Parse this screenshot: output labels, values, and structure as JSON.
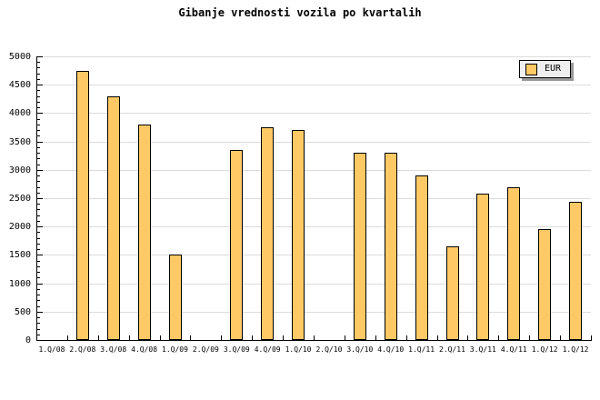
{
  "title": "Gibanje vrednosti vozila po kvartalih",
  "legend": {
    "label": "EUR",
    "swatch_color": "#ffc966",
    "position": "top-right"
  },
  "colors": {
    "background": "#ffffff",
    "bar_fill": "#ffc966",
    "bar_border": "#000000",
    "grid": "#dcdcdc",
    "axis": "#000000",
    "legend_bg": "#efefef",
    "legend_shadow": "#999999",
    "text": "#000000"
  },
  "chart_data": {
    "type": "bar",
    "title": "Gibanje vrednosti vozila po kvartalih",
    "xlabel": "",
    "ylabel": "",
    "ylim": [
      0,
      5000
    ],
    "ytick_step": 500,
    "ytick_labels": [
      "0",
      "500",
      "1000",
      "1500",
      "2000",
      "2500",
      "3000",
      "3500",
      "4000",
      "4500",
      "5000"
    ],
    "grid": "horizontal",
    "legend_position": "top-right",
    "categories": [
      "1.Q/08",
      "2.Q/08",
      "3.Q/08",
      "4.Q/08",
      "1.Q/09",
      "2.Q/09",
      "3.Q/09",
      "4.Q/09",
      "1.Q/10",
      "2.Q/10",
      "3.Q/10",
      "4.Q/10",
      "1.Q/11",
      "2.Q/11",
      "3.Q/11",
      "4.Q/11",
      "1.Q/12",
      "1.Q/12"
    ],
    "series": [
      {
        "name": "EUR",
        "values": [
          null,
          4750,
          4300,
          3800,
          1500,
          null,
          3350,
          3750,
          3700,
          null,
          3300,
          3300,
          2900,
          1650,
          2580,
          2700,
          1950,
          2430
        ]
      }
    ]
  },
  "layout_note": "bars absent for 1.Q/08, 2.Q/09 and 2.Q/10"
}
